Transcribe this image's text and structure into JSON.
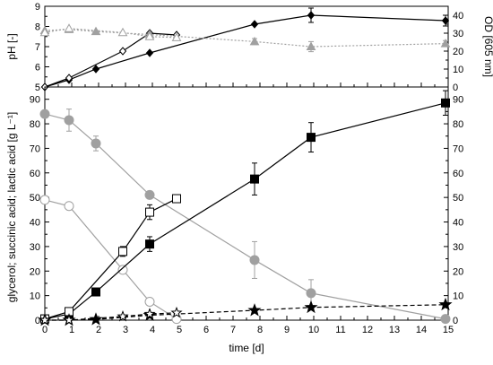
{
  "chart_data": [
    {
      "id": "top",
      "type": "line",
      "xlim": [
        0,
        15
      ],
      "x_ticks": [
        "0",
        "1",
        "2",
        "3",
        "4",
        "5",
        "6",
        "7",
        "8",
        "9",
        "10",
        "11",
        "12",
        "13",
        "14",
        "15"
      ],
      "ylabel_left": "pH [-]",
      "ylabel_right": "OD [605 nm]",
      "ylim_left": [
        5,
        9
      ],
      "ylim_right": [
        0,
        45
      ],
      "yticks_left": [
        "5",
        "6",
        "7",
        "8",
        "9"
      ],
      "yticks_right": [
        "0",
        "10",
        "20",
        "30",
        "40"
      ],
      "grid": false,
      "series": [
        {
          "marker": "filled-diamond",
          "axis": "right",
          "color": "#000000",
          "line": "solid",
          "x": [
            0,
            0.9,
            1.9,
            3.9,
            7.8,
            9.9,
            14.9
          ],
          "y": [
            0,
            4,
            10,
            19,
            35,
            40,
            37
          ],
          "err": [
            0,
            0,
            0,
            0,
            0,
            4,
            3
          ]
        },
        {
          "marker": "open-diamond",
          "axis": "right",
          "color": "#000000",
          "line": "solid",
          "x": [
            0,
            0.9,
            2.9,
            3.9,
            4.9
          ],
          "y": [
            0,
            5,
            20,
            30,
            29
          ],
          "err": [
            0,
            0,
            0,
            0,
            0
          ]
        },
        {
          "marker": "filled-triangle",
          "axis": "left",
          "color": "#a0a0a0",
          "line": "dotted",
          "x": [
            0,
            0.9,
            1.9,
            3.9,
            7.8,
            9.9,
            14.9
          ],
          "y": [
            7.8,
            7.85,
            7.75,
            7.6,
            7.25,
            7.0,
            7.15
          ],
          "err": [
            0,
            0,
            0,
            0,
            0.15,
            0.25,
            0.15
          ]
        },
        {
          "marker": "open-triangle",
          "axis": "left",
          "color": "#a0a0a0",
          "line": "dotted",
          "x": [
            0,
            0.9,
            2.9,
            3.9,
            4.9
          ],
          "y": [
            7.7,
            7.9,
            7.7,
            7.5,
            7.45
          ],
          "err": [
            0,
            0,
            0,
            0,
            0
          ]
        }
      ]
    },
    {
      "id": "bottom",
      "type": "line",
      "xlabel": "time [d]",
      "xlim": [
        0,
        15
      ],
      "x_ticks": [
        "0",
        "1",
        "2",
        "3",
        "4",
        "5",
        "6",
        "7",
        "8",
        "9",
        "10",
        "11",
        "12",
        "13",
        "14",
        "15"
      ],
      "ylabel_left": "glycerol; succinic acid; lactic acid [g L⁻¹]",
      "ylim": [
        0,
        95
      ],
      "yticks": [
        "0",
        "10",
        "20",
        "30",
        "40",
        "50",
        "60",
        "70",
        "80",
        "90"
      ],
      "grid": false,
      "series": [
        {
          "marker": "filled-circle",
          "color": "#a0a0a0",
          "line": "solid",
          "x": [
            0,
            0.9,
            1.9,
            3.9,
            7.8,
            9.9,
            14.9
          ],
          "y": [
            84,
            81.5,
            72,
            51,
            24.5,
            11,
            0.5
          ],
          "err": [
            0,
            4.5,
            3,
            1.5,
            7.5,
            5.5,
            0
          ]
        },
        {
          "marker": "open-circle",
          "color": "#a0a0a0",
          "line": "solid",
          "x": [
            0,
            0.9,
            2.9,
            3.9,
            4.9
          ],
          "y": [
            49,
            46.5,
            20.5,
            7.5,
            0.5
          ],
          "err": [
            0,
            0,
            0,
            0,
            0
          ]
        },
        {
          "marker": "filled-square",
          "color": "#000000",
          "line": "solid",
          "x": [
            0,
            0.9,
            1.9,
            3.9,
            7.8,
            9.9,
            14.9
          ],
          "y": [
            0.5,
            2.5,
            11.5,
            31,
            57.5,
            74.5,
            88.5
          ],
          "err": [
            0,
            0,
            0,
            3,
            6.5,
            6,
            5
          ]
        },
        {
          "marker": "open-square",
          "color": "#000000",
          "line": "solid",
          "x": [
            0,
            0.9,
            2.9,
            3.9,
            4.9
          ],
          "y": [
            0.5,
            3.5,
            28,
            44,
            49.5
          ],
          "err": [
            0,
            0,
            2,
            3,
            1.5
          ]
        },
        {
          "marker": "filled-star",
          "color": "#000000",
          "line": "dashed",
          "x": [
            0,
            0.9,
            1.9,
            3.9,
            7.8,
            9.9,
            14.9
          ],
          "y": [
            0,
            0,
            0.3,
            2,
            4,
            5.2,
            6.3
          ],
          "err": [
            0,
            0,
            0,
            0,
            0,
            0,
            0
          ]
        },
        {
          "marker": "open-star",
          "color": "#000000",
          "line": "dashed",
          "x": [
            0,
            0.9,
            2.9,
            3.9,
            4.9
          ],
          "y": [
            0,
            0,
            1.5,
            2.5,
            3
          ],
          "err": [
            0,
            0,
            0,
            0,
            0
          ]
        }
      ]
    }
  ]
}
